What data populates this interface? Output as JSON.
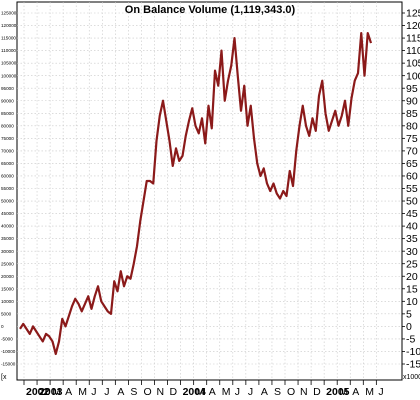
{
  "chart_data": {
    "type": "line",
    "title": "On Balance Volume (1,119,343.0)",
    "unit_label": "x1000",
    "left_unit_label": "[x",
    "line_color": "#8b1a1a",
    "grid": true,
    "ylim": [
      -15,
      130
    ],
    "right_ticks": [
      "125",
      "120",
      "115",
      "110",
      "105",
      "100",
      "95",
      "90",
      "85",
      "80",
      "75",
      "70",
      "65",
      "60",
      "55",
      "50",
      "45",
      "40",
      "35",
      "30",
      "25",
      "20",
      "15",
      "10",
      "5",
      "0",
      "-5",
      "-10",
      "-15"
    ],
    "left_ticks": [
      "125000",
      "120000",
      "115000",
      "110000",
      "105000",
      "100000",
      "95000",
      "90000",
      "85000",
      "80000",
      "75000",
      "70000",
      "65000",
      "60000",
      "55000",
      "50000",
      "45000",
      "40000",
      "35000",
      "30000",
      "25000",
      "20000",
      "15000",
      "10000",
      "5000",
      "0",
      "-5000",
      "-10000",
      "-15000"
    ],
    "x_labels": [
      "2002",
      "2003",
      "M",
      "A",
      "M",
      "J",
      "J",
      "A",
      "S",
      "O",
      "N",
      "D",
      "2004",
      "M",
      "A",
      "M",
      "J",
      "J",
      "A",
      "S",
      "O",
      "N",
      "D",
      "2005",
      "M",
      "A",
      "M",
      "J"
    ],
    "series": [
      {
        "values": [
          -1,
          1,
          -1,
          -3,
          0,
          -2,
          -4,
          -6,
          -3,
          -4,
          -6,
          -11,
          -6,
          3,
          0,
          4,
          8,
          11,
          9,
          6,
          9,
          12,
          7,
          12,
          16,
          10,
          8,
          6,
          5,
          18,
          14,
          22,
          16,
          20,
          19,
          25,
          32,
          42,
          50,
          58,
          58,
          57,
          74,
          84,
          90,
          82,
          74,
          64,
          71,
          66,
          68,
          76,
          82,
          87,
          80,
          77,
          83,
          73,
          88,
          79,
          102,
          96,
          110,
          90,
          98,
          104,
          115,
          100,
          86,
          96,
          80,
          88,
          75,
          65,
          60,
          63,
          57,
          54,
          57,
          53,
          51,
          54,
          52,
          62,
          56,
          70,
          80,
          88,
          80,
          76,
          83,
          78,
          92,
          98,
          85,
          78,
          82,
          86,
          80,
          84,
          90,
          80,
          91,
          98,
          101,
          117,
          100,
          117,
          113
        ]
      }
    ]
  }
}
